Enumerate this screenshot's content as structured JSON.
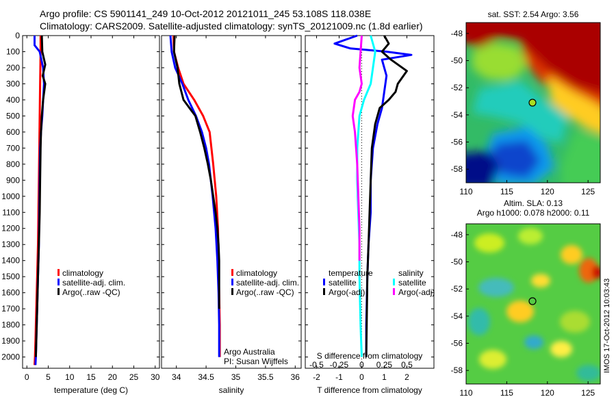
{
  "title_line1": "Argo profile: CS 5901141_249 10-Oct-2012 20121011_245 53.108S 118.038E",
  "title_line2": "Climatology: CARS2009. Satellite-adjusted climatology: synTS_20121009.nc (1.8d earlier)",
  "map_sst_title": "sat. SST: 2.54 Argo: 3.56",
  "map_sla_title1": "Altim. SLA: 0.13",
  "map_sla_title2": "Argo h1000: 0.078 h2000: 0.11",
  "side_stamp": "IMOS 17-Oct-2012 10:03:43",
  "colors": {
    "climatology": "#ff0000",
    "satellite": "#0000ff",
    "argo": "#000000",
    "satellite_s": "#00ffff",
    "argo_s_diff": "#ff00ff"
  },
  "legend_temp": [
    "climatology",
    "satellite-adj. clim.",
    "Argo(..raw -QC)"
  ],
  "legend_sal": [
    "climatology",
    "satellite-adj. clim.",
    "Argo(..raw -QC)"
  ],
  "legend_diff": {
    "col1_header": "temperature",
    "col2_header": "salinity",
    "col1_items": [
      "satellite",
      "Argo(-adj)"
    ],
    "col2_items": [
      "satellite",
      "Argo(-adj)"
    ]
  },
  "sal_note": [
    "Argo Australia",
    "PI: Susan Wijffels"
  ],
  "chart_data": [
    {
      "type": "line",
      "name": "temperature",
      "xlabel": "temperature (deg C)",
      "xlim": [
        -1,
        31
      ],
      "ylim": [
        0,
        2070
      ],
      "x_ticks": [
        0,
        5,
        10,
        15,
        20,
        25,
        30
      ],
      "y_ticks": [
        0,
        100,
        200,
        300,
        400,
        500,
        600,
        700,
        800,
        900,
        1000,
        1100,
        1200,
        1300,
        1400,
        1500,
        1600,
        1700,
        1800,
        1900,
        2000
      ],
      "y_reversed": true,
      "series": [
        {
          "name": "climatology",
          "color": "#ff0000",
          "x": [
            3.2,
            3.2,
            3.1,
            3.0,
            2.9,
            2.8,
            2.7,
            2.6,
            2.4,
            2.2,
            2.0,
            1.9,
            1.8
          ],
          "y": [
            0,
            100,
            300,
            500,
            700,
            900,
            1100,
            1300,
            1500,
            1700,
            1900,
            2000,
            2050
          ]
        },
        {
          "name": "satellite-adj. clim.",
          "color": "#0000ff",
          "x": [
            1.8,
            1.8,
            3.0,
            3.8,
            4.0,
            3.8,
            3.6,
            3.3,
            3.1,
            3.0,
            2.9,
            2.8,
            2.6,
            2.4,
            2.2,
            2.1,
            2.0
          ],
          "y": [
            0,
            60,
            100,
            200,
            300,
            400,
            500,
            600,
            700,
            900,
            1100,
            1300,
            1500,
            1700,
            1900,
            2000,
            2050
          ]
        },
        {
          "name": "Argo(..raw -QC)",
          "color": "#000000",
          "x": [
            3.5,
            3.6,
            4.3,
            3.7,
            4.3,
            3.8,
            3.5,
            3.3,
            3.2,
            3.1,
            3.0,
            2.8,
            2.6,
            2.4,
            2.2,
            2.1
          ],
          "y": [
            0,
            100,
            180,
            250,
            300,
            400,
            500,
            600,
            700,
            900,
            1100,
            1300,
            1500,
            1700,
            1900,
            2000
          ]
        }
      ]
    },
    {
      "type": "line",
      "name": "salinity",
      "xlabel": "salinity",
      "xlim": [
        33.75,
        36.1
      ],
      "ylim": [
        0,
        2070
      ],
      "x_ticks": [
        34,
        34.5,
        35,
        35.5,
        36
      ],
      "y_reversed": true,
      "series": [
        {
          "name": "climatology",
          "color": "#ff0000",
          "x": [
            33.95,
            33.96,
            34.03,
            34.12,
            34.3,
            34.45,
            34.56,
            34.62,
            34.67,
            34.7,
            34.71,
            34.72,
            34.73,
            34.73
          ],
          "y": [
            0,
            100,
            200,
            300,
            400,
            500,
            600,
            800,
            1000,
            1200,
            1400,
            1600,
            1800,
            2000
          ]
        },
        {
          "name": "satellite-adj. clim.",
          "color": "#0000ff",
          "x": [
            33.9,
            33.92,
            33.98,
            34.1,
            34.2,
            34.33,
            34.43,
            34.5,
            34.55,
            34.61,
            34.66,
            34.69,
            34.71,
            34.72,
            34.72
          ],
          "y": [
            0,
            100,
            200,
            300,
            400,
            500,
            600,
            700,
            800,
            1000,
            1200,
            1400,
            1600,
            1800,
            2000
          ]
        },
        {
          "name": "Argo(..raw -QC)",
          "color": "#000000",
          "x": [
            33.97,
            33.96,
            34.02,
            34.05,
            34.12,
            34.22,
            34.32,
            34.4,
            34.47,
            34.53,
            34.58,
            34.62,
            34.66,
            34.69,
            34.71,
            34.72,
            34.72
          ],
          "y": [
            0,
            100,
            200,
            300,
            400,
            450,
            500,
            600,
            700,
            800,
            900,
            1000,
            1100,
            1200,
            1300,
            1400,
            1700
          ]
        }
      ]
    },
    {
      "type": "line",
      "name": "difference",
      "xlabel": "T difference from climatology",
      "xlabel_top": "S difference from climatology",
      "xlim": [
        -2.5,
        3.2
      ],
      "ylim": [
        0,
        2070
      ],
      "x_ticks": [
        -2,
        -1,
        0,
        1,
        2
      ],
      "x_ticks_top_labels": [
        "-0.5",
        "-0.25",
        "0",
        "0.25",
        "0.5"
      ],
      "x_ticks_top_values": [
        -2,
        -1,
        0,
        1,
        2
      ],
      "y_reversed": true,
      "series": [
        {
          "name": "temperature satellite",
          "color": "#0000ff",
          "x": [
            -0.2,
            -1.2,
            -0.5,
            1.1,
            2.2,
            0.9,
            1.1,
            1.0,
            0.9,
            0.7,
            0.5,
            0.4,
            0.4,
            0.3,
            0.25,
            0.2,
            0.2
          ],
          "y": [
            0,
            50,
            80,
            100,
            120,
            150,
            250,
            350,
            450,
            550,
            700,
            900,
            1100,
            1300,
            1500,
            1800,
            2000
          ]
        },
        {
          "name": "temperature Argo(-adj)",
          "color": "#000000",
          "x": [
            1.0,
            1.2,
            0.9,
            1.3,
            2.0,
            1.6,
            1.5,
            1.2,
            0.8,
            0.6,
            0.45,
            0.4,
            0.35,
            0.3,
            0.25,
            0.2
          ],
          "y": [
            0,
            50,
            100,
            150,
            220,
            300,
            350,
            400,
            450,
            550,
            700,
            900,
            1100,
            1300,
            1500,
            2000
          ]
        },
        {
          "name": "salinity satellite",
          "color": "#00ffff",
          "x": [
            0.4,
            0.6,
            0.5,
            0.4,
            0.1,
            -0.1,
            -0.2,
            -0.2,
            -0.15,
            -0.1,
            -0.1,
            -0.05,
            0.0
          ],
          "y": [
            0,
            100,
            200,
            300,
            400,
            500,
            700,
            900,
            1100,
            1300,
            1500,
            1800,
            2000
          ]
        },
        {
          "name": "salinity Argo(-adj)",
          "color": "#ff00ff",
          "x": [
            0.0,
            -0.1,
            0.0,
            -0.1,
            -0.3,
            -0.4,
            -0.3,
            -0.2,
            -0.15,
            -0.1,
            -0.1
          ],
          "y": [
            0,
            200,
            300,
            350,
            400,
            500,
            600,
            800,
            1000,
            1200,
            1400
          ]
        }
      ]
    }
  ],
  "map_axes": {
    "x_ticks": [
      110,
      115,
      120,
      125
    ],
    "y_ticks": [
      -48,
      -50,
      -52,
      -54,
      -56,
      -58
    ],
    "xlim": [
      110,
      126.5
    ],
    "ylim": [
      -59,
      -47.2
    ],
    "argo_position": {
      "lon": 118.038,
      "lat": -53.108
    }
  }
}
